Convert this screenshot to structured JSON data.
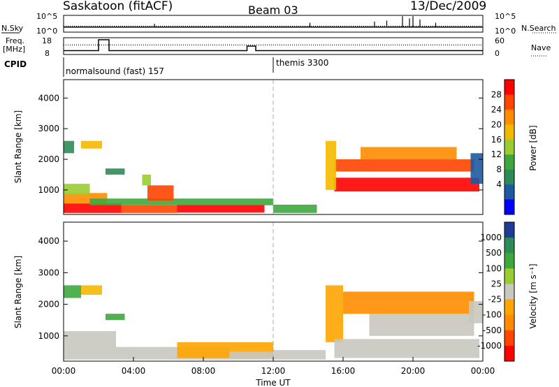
{
  "header": {
    "station": "Saskatoon (fitACF)",
    "beam": "Beam 03",
    "date": "13/Dec/2009"
  },
  "chart_data": [
    {
      "type": "line",
      "panel": "noise",
      "ylabel": "N.Sky",
      "left_ticks": [
        "10^5",
        "10^0"
      ],
      "right_ticks": [
        "10^5",
        "10^0"
      ],
      "right_label": "N.Search",
      "series": [
        {
          "name": "N.Sky",
          "style": "solid",
          "level": 0.3
        },
        {
          "name": "N.Search",
          "style": "dotted",
          "level": 0.35
        }
      ],
      "spikes_hours": [
        5.2,
        14.1,
        17.8,
        18.5,
        19.4,
        19.8,
        20.0,
        20.4,
        21.3
      ],
      "spike_heights": [
        0.3,
        0.4,
        0.5,
        0.6,
        1.0,
        0.8,
        1.0,
        0.7,
        0.4
      ]
    },
    {
      "type": "line",
      "panel": "freq",
      "ylabel": "Freq.\n[MHz]",
      "left_ticks": [
        "18",
        "8"
      ],
      "right_ticks": [
        "60",
        "0"
      ],
      "right_label": "Nave",
      "ylim": [
        8,
        18
      ],
      "freq_mhz": [
        [
          0.0,
          10.3
        ],
        [
          2.0,
          10.3
        ],
        [
          2.0,
          16.8
        ],
        [
          2.6,
          16.8
        ],
        [
          2.6,
          10.3
        ],
        [
          10.5,
          10.3
        ],
        [
          10.5,
          13.0
        ],
        [
          11.0,
          13.0
        ],
        [
          11.0,
          10.3
        ],
        [
          24.0,
          10.3
        ]
      ],
      "nave": [
        [
          0,
          34
        ],
        [
          24,
          34
        ]
      ]
    },
    {
      "type": "table",
      "panel": "cpid",
      "label": "CPID",
      "entries": [
        {
          "start_hour": 0,
          "label": "normalsound (fast) 157"
        },
        {
          "start_hour": 12,
          "label": "themis 3300"
        }
      ]
    },
    {
      "type": "heatmap",
      "panel": "power",
      "ylabel": "Slant Range [km]",
      "yticks": [
        1000,
        2000,
        3000,
        4000
      ],
      "ylim": [
        200,
        4600
      ],
      "xlim_hours": [
        0,
        24
      ],
      "colorbar": {
        "label": "Power [dB]",
        "ticks": [
          "28",
          "24",
          "20",
          "16",
          "12",
          "8",
          "4"
        ],
        "colors": [
          "#ff0000",
          "#ff4500",
          "#ff8c00",
          "#f5b800",
          "#9acd32",
          "#3ea83e",
          "#2e8b57",
          "#1e5aa0",
          "#0000ff"
        ]
      },
      "regions": [
        {
          "hours": [
            0.0,
            3.3
          ],
          "range": [
            250,
            560
          ],
          "color": "#ff0000"
        },
        {
          "hours": [
            0.0,
            2.5
          ],
          "range": [
            560,
            900
          ],
          "color": "#ff8c00"
        },
        {
          "hours": [
            0.0,
            1.5
          ],
          "range": [
            850,
            1200
          ],
          "color": "#9acd32"
        },
        {
          "hours": [
            3.3,
            6.5
          ],
          "range": [
            250,
            500
          ],
          "color": "#ff4500"
        },
        {
          "hours": [
            6.5,
            11.5
          ],
          "range": [
            260,
            520
          ],
          "color": "#ff0000"
        },
        {
          "hours": [
            1.5,
            12.0
          ],
          "range": [
            500,
            720
          ],
          "color": "#3ea83e"
        },
        {
          "hours": [
            4.8,
            6.3
          ],
          "range": [
            650,
            1150
          ],
          "color": "#ff4500"
        },
        {
          "hours": [
            4.5,
            5.0
          ],
          "range": [
            1150,
            1500
          ],
          "color": "#9acd32"
        },
        {
          "hours": [
            0.0,
            0.6
          ],
          "range": [
            2200,
            2600
          ],
          "color": "#2e8b57"
        },
        {
          "hours": [
            1.0,
            2.2
          ],
          "range": [
            2350,
            2600
          ],
          "color": "#f5b800"
        },
        {
          "hours": [
            2.4,
            3.5
          ],
          "range": [
            1500,
            1700
          ],
          "color": "#2e8b57"
        },
        {
          "hours": [
            12.0,
            14.5
          ],
          "range": [
            250,
            520
          ],
          "color": "#3ea83e"
        },
        {
          "hours": [
            15.0,
            23.8
          ],
          "range": [
            300,
            600
          ],
          "color": "#ffffff"
        },
        {
          "hours": [
            15.5,
            23.8
          ],
          "range": [
            950,
            1400
          ],
          "color": "#ff0000"
        },
        {
          "hours": [
            15.5,
            23.5
          ],
          "range": [
            1600,
            2000
          ],
          "color": "#ff4500"
        },
        {
          "hours": [
            17.0,
            22.5
          ],
          "range": [
            2000,
            2400
          ],
          "color": "#ff8c00"
        },
        {
          "hours": [
            15.0,
            15.6
          ],
          "range": [
            1000,
            2600
          ],
          "color": "#f5b800"
        },
        {
          "hours": [
            23.3,
            24.0
          ],
          "range": [
            1200,
            2200
          ],
          "color": "#1e5aa0"
        }
      ]
    },
    {
      "type": "heatmap",
      "panel": "velocity",
      "ylabel": "Slant Range [km]",
      "xlabel": "Time UT",
      "xticks": [
        "00:00",
        "04:00",
        "08:00",
        "12:00",
        "16:00",
        "20:00",
        "00:00"
      ],
      "yticks": [
        1000,
        2000,
        3000,
        4000
      ],
      "ylim": [
        200,
        4600
      ],
      "xlim_hours": [
        0,
        24
      ],
      "colorbar": {
        "label": "Velocity [m s⁻¹]",
        "ticks": [
          "1000",
          "500",
          "100",
          "25",
          "-25",
          "-100",
          "-500",
          "-1000"
        ],
        "colors": [
          "#1e3c96",
          "#2e8b57",
          "#3ea83e",
          "#9acd32",
          "#c8c8c0",
          "#ffa500",
          "#ff8c00",
          "#ff4500",
          "#ff0000"
        ]
      },
      "regions": [
        {
          "hours": [
            0.0,
            3.0
          ],
          "range": [
            250,
            1150
          ],
          "color": "#c8c8c0"
        },
        {
          "hours": [
            3.0,
            9.5
          ],
          "range": [
            250,
            650
          ],
          "color": "#c8c8c0"
        },
        {
          "hours": [
            6.5,
            12.0
          ],
          "range": [
            300,
            800
          ],
          "color": "#ffa500"
        },
        {
          "hours": [
            9.5,
            12.0
          ],
          "range": [
            250,
            500
          ],
          "color": "#c8c8c0"
        },
        {
          "hours": [
            12.0,
            15.0
          ],
          "range": [
            250,
            550
          ],
          "color": "#c8c8c0"
        },
        {
          "hours": [
            0.0,
            1.0
          ],
          "range": [
            2200,
            2600
          ],
          "color": "#3ea83e"
        },
        {
          "hours": [
            1.0,
            2.2
          ],
          "range": [
            2300,
            2600
          ],
          "color": "#f5b800"
        },
        {
          "hours": [
            2.4,
            3.5
          ],
          "range": [
            1500,
            1700
          ],
          "color": "#3ea83e"
        },
        {
          "hours": [
            15.0,
            16.0
          ],
          "range": [
            800,
            2600
          ],
          "color": "#ffa500"
        },
        {
          "hours": [
            16.0,
            23.5
          ],
          "range": [
            1700,
            2400
          ],
          "color": "#ff8c00"
        },
        {
          "hours": [
            17.5,
            23.5
          ],
          "range": [
            1000,
            1700
          ],
          "color": "#c8c8c0"
        },
        {
          "hours": [
            15.5,
            23.8
          ],
          "range": [
            300,
            900
          ],
          "color": "#c8c8c0"
        },
        {
          "hours": [
            23.2,
            24.0
          ],
          "range": [
            1400,
            2100
          ],
          "color": "#c8c8c0"
        }
      ]
    }
  ]
}
